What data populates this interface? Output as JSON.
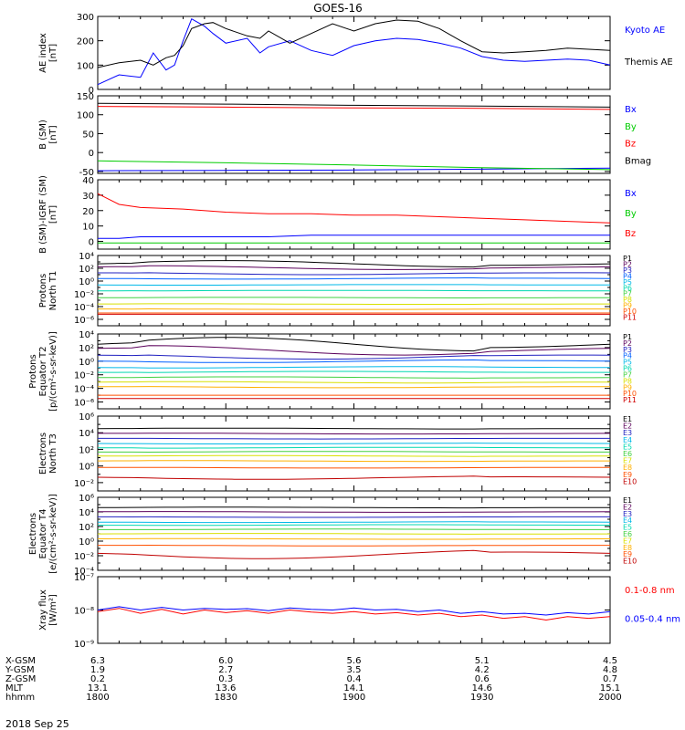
{
  "title": "GOES-16",
  "date_label": "2018 Sep 25",
  "x_ticks": [
    "1800",
    "1830",
    "1900",
    "1930",
    "2000"
  ],
  "orbit_rows": [
    {
      "label": "X-GSM",
      "values": [
        "6.3",
        "6.0",
        "5.6",
        "5.1",
        "4.5"
      ]
    },
    {
      "label": "Y-GSM",
      "values": [
        "1.9",
        "2.7",
        "3.5",
        "4.2",
        "4.8"
      ]
    },
    {
      "label": "Z-GSM",
      "values": [
        "0.2",
        "0.3",
        "0.4",
        "0.6",
        "0.7"
      ]
    },
    {
      "label": "MLT",
      "values": [
        "13.1",
        "13.6",
        "14.1",
        "14.6",
        "15.1"
      ]
    },
    {
      "label": "hhmm",
      "values": [
        "1800",
        "1830",
        "1900",
        "1930",
        "2000"
      ]
    }
  ],
  "colors": {
    "black": "#000000",
    "blue": "#0000ff",
    "green": "#00cc00",
    "red": "#ff0000"
  },
  "chart_data": [
    {
      "id": "ae",
      "type": "line",
      "ylabel": [
        "AE index",
        "[nT]"
      ],
      "yscale": "linear",
      "ylim": [
        0,
        300
      ],
      "yticks": [
        {
          "v": 0,
          "t": "0"
        },
        {
          "v": 100,
          "t": "100"
        },
        {
          "v": 200,
          "t": "200"
        },
        {
          "v": 300,
          "t": "300"
        }
      ],
      "x_minutes": [
        0,
        5,
        10,
        13,
        16,
        18,
        20,
        22,
        25,
        27,
        30,
        35,
        38,
        40,
        45,
        50,
        55,
        60,
        65,
        70,
        75,
        80,
        85,
        90,
        95,
        100,
        105,
        110,
        115,
        120
      ],
      "series": [
        {
          "name": "Kyoto AE",
          "color": "blue",
          "values": [
            20,
            60,
            50,
            150,
            80,
            100,
            200,
            290,
            260,
            230,
            190,
            210,
            150,
            175,
            200,
            160,
            140,
            180,
            200,
            210,
            205,
            190,
            170,
            135,
            120,
            115,
            120,
            125,
            120,
            100
          ]
        },
        {
          "name": "Themis AE",
          "color": "black",
          "values": [
            90,
            110,
            120,
            100,
            130,
            140,
            180,
            250,
            270,
            275,
            250,
            220,
            210,
            240,
            190,
            230,
            270,
            240,
            270,
            285,
            280,
            250,
            200,
            155,
            150,
            155,
            160,
            170,
            165,
            160
          ]
        }
      ]
    },
    {
      "id": "b",
      "type": "line",
      "ylabel": [
        "B (SM)",
        "[nT]"
      ],
      "yscale": "linear",
      "ylim": [
        -55,
        150
      ],
      "yticks": [
        {
          "v": -50,
          "t": "-50"
        },
        {
          "v": 0,
          "t": "0"
        },
        {
          "v": 50,
          "t": "50"
        },
        {
          "v": 100,
          "t": "100"
        },
        {
          "v": 150,
          "t": "150"
        }
      ],
      "x_minutes": [
        0,
        30,
        60,
        90,
        120
      ],
      "series": [
        {
          "name": "Bx",
          "color": "blue",
          "values": [
            -48,
            -47,
            -46,
            -44,
            -41
          ]
        },
        {
          "name": "By",
          "color": "green",
          "values": [
            -22,
            -27,
            -33,
            -40,
            -45
          ]
        },
        {
          "name": "Bz",
          "color": "red",
          "values": [
            122,
            120,
            118,
            117,
            114
          ]
        },
        {
          "name": "Bmag",
          "color": "black",
          "values": [
            130,
            128,
            125,
            123,
            120
          ]
        }
      ]
    },
    {
      "id": "bigrf",
      "type": "line",
      "ylabel": [
        "B (SM)-IGRF (SM)",
        "[nT]"
      ],
      "yscale": "linear",
      "ylim": [
        -5,
        40
      ],
      "yticks": [
        {
          "v": 0,
          "t": "0"
        },
        {
          "v": 10,
          "t": "10"
        },
        {
          "v": 20,
          "t": "20"
        },
        {
          "v": 30,
          "t": "30"
        },
        {
          "v": 40,
          "t": "40"
        }
      ],
      "x_minutes": [
        0,
        5,
        10,
        20,
        30,
        40,
        50,
        60,
        70,
        80,
        90,
        100,
        110,
        120
      ],
      "series": [
        {
          "name": "Bx",
          "color": "blue",
          "values": [
            2,
            2,
            3,
            3,
            3,
            3,
            4,
            4,
            4,
            4,
            4,
            4,
            4,
            4
          ]
        },
        {
          "name": "By",
          "color": "green",
          "values": [
            -1,
            -1,
            -1,
            -1,
            -1,
            -1,
            -1,
            -1,
            -1,
            -1,
            -1,
            -1,
            -1,
            -1
          ]
        },
        {
          "name": "Bz",
          "color": "red",
          "values": [
            31,
            24,
            22,
            21,
            19,
            18,
            18,
            17,
            17,
            16,
            15,
            14,
            13,
            12
          ]
        }
      ]
    },
    {
      "id": "pn",
      "type": "line",
      "ylabel": [
        "Protons",
        "North T1"
      ],
      "yscale": "log",
      "ylim": [
        -7,
        4
      ],
      "yticks": [
        {
          "v": 4,
          "t": "10⁴"
        },
        {
          "v": 2,
          "t": "10²"
        },
        {
          "v": 0,
          "t": "10⁰"
        },
        {
          "v": -2,
          "t": "10⁻²"
        },
        {
          "v": -4,
          "t": "10⁻⁴"
        },
        {
          "v": -6,
          "t": "10⁻⁶"
        }
      ],
      "channels": [
        {
          "name": "P1",
          "color": "#000000",
          "log": 2.7,
          "amp": 0.5
        },
        {
          "name": "P2",
          "color": "#5b005b",
          "log": 2.1,
          "amp": 0.3
        },
        {
          "name": "P3",
          "color": "#2020c0",
          "log": 1.2,
          "amp": 0.2
        },
        {
          "name": "P4",
          "color": "#0060ff",
          "log": 0.4,
          "amp": 0.1
        },
        {
          "name": "P5",
          "color": "#00b8e8",
          "log": -0.6,
          "amp": 0.05
        },
        {
          "name": "P6",
          "color": "#00d8b0",
          "log": -1.5,
          "amp": 0.05
        },
        {
          "name": "P7",
          "color": "#40d040",
          "log": -2.6,
          "amp": 0.05
        },
        {
          "name": "P8",
          "color": "#d8e000",
          "log": -3.6,
          "amp": 0.05
        },
        {
          "name": "P9",
          "color": "#ffb000",
          "log": -4.4,
          "amp": 0.05
        },
        {
          "name": "P10",
          "color": "#ff5000",
          "log": -5.0,
          "amp": 0.0
        },
        {
          "name": "P11",
          "color": "#d00000",
          "log": -5.2,
          "amp": 0.0
        }
      ]
    },
    {
      "id": "pe",
      "type": "line",
      "ylabel": [
        "Protons",
        "Equator T2",
        "[p/(cm²-s-sr-keV)]"
      ],
      "yscale": "log",
      "ylim": [
        -7,
        4
      ],
      "yticks": [
        {
          "v": 4,
          "t": "10⁴"
        },
        {
          "v": 2,
          "t": "10²"
        },
        {
          "v": 0,
          "t": "10⁰"
        },
        {
          "v": -2,
          "t": "10⁻²"
        },
        {
          "v": -4,
          "t": "10⁻⁴"
        },
        {
          "v": -6,
          "t": "10⁻⁶"
        }
      ],
      "channels": [
        {
          "name": "P1",
          "color": "#000000",
          "log": 2.5,
          "amp": 1.0
        },
        {
          "name": "P2",
          "color": "#5b005b",
          "log": 1.6,
          "amp": 0.7
        },
        {
          "name": "P3",
          "color": "#2020c0",
          "log": 0.7,
          "amp": 0.4
        },
        {
          "name": "P4",
          "color": "#0060ff",
          "log": 0.0,
          "amp": 0.2
        },
        {
          "name": "P5",
          "color": "#00b8e8",
          "log": -0.9,
          "amp": 0.1
        },
        {
          "name": "P6",
          "color": "#00d8b0",
          "log": -1.6,
          "amp": 0.1
        },
        {
          "name": "P7",
          "color": "#40d040",
          "log": -2.4,
          "amp": 0.1
        },
        {
          "name": "P8",
          "color": "#d8e000",
          "log": -3.1,
          "amp": 0.1
        },
        {
          "name": "P9",
          "color": "#ffb000",
          "log": -3.8,
          "amp": 0.1
        },
        {
          "name": "P10",
          "color": "#ff5000",
          "log": -5.0,
          "amp": 0.0
        },
        {
          "name": "P11",
          "color": "#d00000",
          "log": -5.5,
          "amp": 0.0
        }
      ]
    },
    {
      "id": "en",
      "type": "line",
      "ylabel": [
        "Electrons",
        "North T3"
      ],
      "yscale": "log",
      "ylim": [
        -3,
        6
      ],
      "yticks": [
        {
          "v": 6,
          "t": "10⁶"
        },
        {
          "v": 4,
          "t": "10⁴"
        },
        {
          "v": 2,
          "t": "10²"
        },
        {
          "v": 0,
          "t": "10⁰"
        },
        {
          "v": -2,
          "t": "10⁻²"
        }
      ],
      "channels": [
        {
          "name": "E1",
          "color": "#000000",
          "log": 4.5,
          "amp": 0.05
        },
        {
          "name": "E2",
          "color": "#5b005b",
          "log": 3.9,
          "amp": 0.05
        },
        {
          "name": "E3",
          "color": "#2020c0",
          "log": 3.3,
          "amp": 0.05
        },
        {
          "name": "E4",
          "color": "#00b8e8",
          "log": 2.7,
          "amp": 0.05
        },
        {
          "name": "E5",
          "color": "#00d8b0",
          "log": 2.2,
          "amp": 0.05
        },
        {
          "name": "E6",
          "color": "#40d040",
          "log": 1.7,
          "amp": 0.05
        },
        {
          "name": "E7",
          "color": "#d8e000",
          "log": 1.2,
          "amp": 0.05
        },
        {
          "name": "E8",
          "color": "#ffb000",
          "log": 0.6,
          "amp": 0.05
        },
        {
          "name": "E9",
          "color": "#ff5000",
          "log": -0.2,
          "amp": 0.05
        },
        {
          "name": "E10",
          "color": "#c00000",
          "log": -1.4,
          "amp": 0.2
        }
      ]
    },
    {
      "id": "ee",
      "type": "line",
      "ylabel": [
        "Electrons",
        "Equator T4",
        "[e/(cm²-s-sr-keV)]"
      ],
      "yscale": "log",
      "ylim": [
        -4,
        6
      ],
      "yticks": [
        {
          "v": 6,
          "t": "10⁶"
        },
        {
          "v": 4,
          "t": "10⁴"
        },
        {
          "v": 2,
          "t": "10²"
        },
        {
          "v": 0,
          "t": "10⁰"
        },
        {
          "v": -2,
          "t": "10⁻²"
        },
        {
          "v": -4,
          "t": "10⁻⁴"
        }
      ],
      "channels": [
        {
          "name": "E1",
          "color": "#000000",
          "log": 4.6,
          "amp": 0.05
        },
        {
          "name": "E2",
          "color": "#5b005b",
          "log": 4.0,
          "amp": 0.05
        },
        {
          "name": "E3",
          "color": "#2020c0",
          "log": 3.3,
          "amp": 0.05
        },
        {
          "name": "E4",
          "color": "#00b8e8",
          "log": 2.6,
          "amp": 0.05
        },
        {
          "name": "E5",
          "color": "#00d8b0",
          "log": 2.2,
          "amp": 0.05
        },
        {
          "name": "E6",
          "color": "#40d040",
          "log": 1.6,
          "amp": 0.05
        },
        {
          "name": "E7",
          "color": "#d8e000",
          "log": 1.0,
          "amp": 0.05
        },
        {
          "name": "E8",
          "color": "#ffb000",
          "log": 0.3,
          "amp": 0.05
        },
        {
          "name": "E9",
          "color": "#ff5000",
          "log": -0.6,
          "amp": 0.05
        },
        {
          "name": "E10",
          "color": "#c00000",
          "log": -1.8,
          "amp": 0.6
        }
      ]
    },
    {
      "id": "xray",
      "type": "line",
      "ylabel": [
        "Xray flux",
        "[W/m²]"
      ],
      "yscale": "log",
      "ylim": [
        -9,
        -7
      ],
      "yticks": [
        {
          "v": -7,
          "t": "10⁻⁷"
        },
        {
          "v": -8,
          "t": "10⁻⁸"
        },
        {
          "v": -9,
          "t": "10⁻⁹"
        }
      ],
      "x_minutes": [
        0,
        5,
        10,
        15,
        20,
        25,
        30,
        35,
        40,
        45,
        50,
        55,
        60,
        65,
        70,
        75,
        80,
        85,
        90,
        95,
        100,
        105,
        110,
        115,
        120
      ],
      "series": [
        {
          "name": "0.1-0.8 nm",
          "color": "red",
          "values": [
            -8.05,
            -7.95,
            -8.1,
            -7.98,
            -8.12,
            -8.0,
            -8.08,
            -8.02,
            -8.1,
            -8.0,
            -8.06,
            -8.1,
            -8.05,
            -8.12,
            -8.08,
            -8.15,
            -8.1,
            -8.2,
            -8.15,
            -8.25,
            -8.2,
            -8.3,
            -8.2,
            -8.25,
            -8.2
          ]
        },
        {
          "name": "0.05-0.4 nm",
          "color": "blue",
          "values": [
            -8.0,
            -7.9,
            -8.0,
            -7.92,
            -8.0,
            -7.95,
            -7.98,
            -7.96,
            -8.02,
            -7.94,
            -7.98,
            -8.0,
            -7.94,
            -8.0,
            -7.98,
            -8.05,
            -8.0,
            -8.1,
            -8.05,
            -8.12,
            -8.1,
            -8.15,
            -8.08,
            -8.12,
            -8.05
          ]
        }
      ]
    }
  ]
}
